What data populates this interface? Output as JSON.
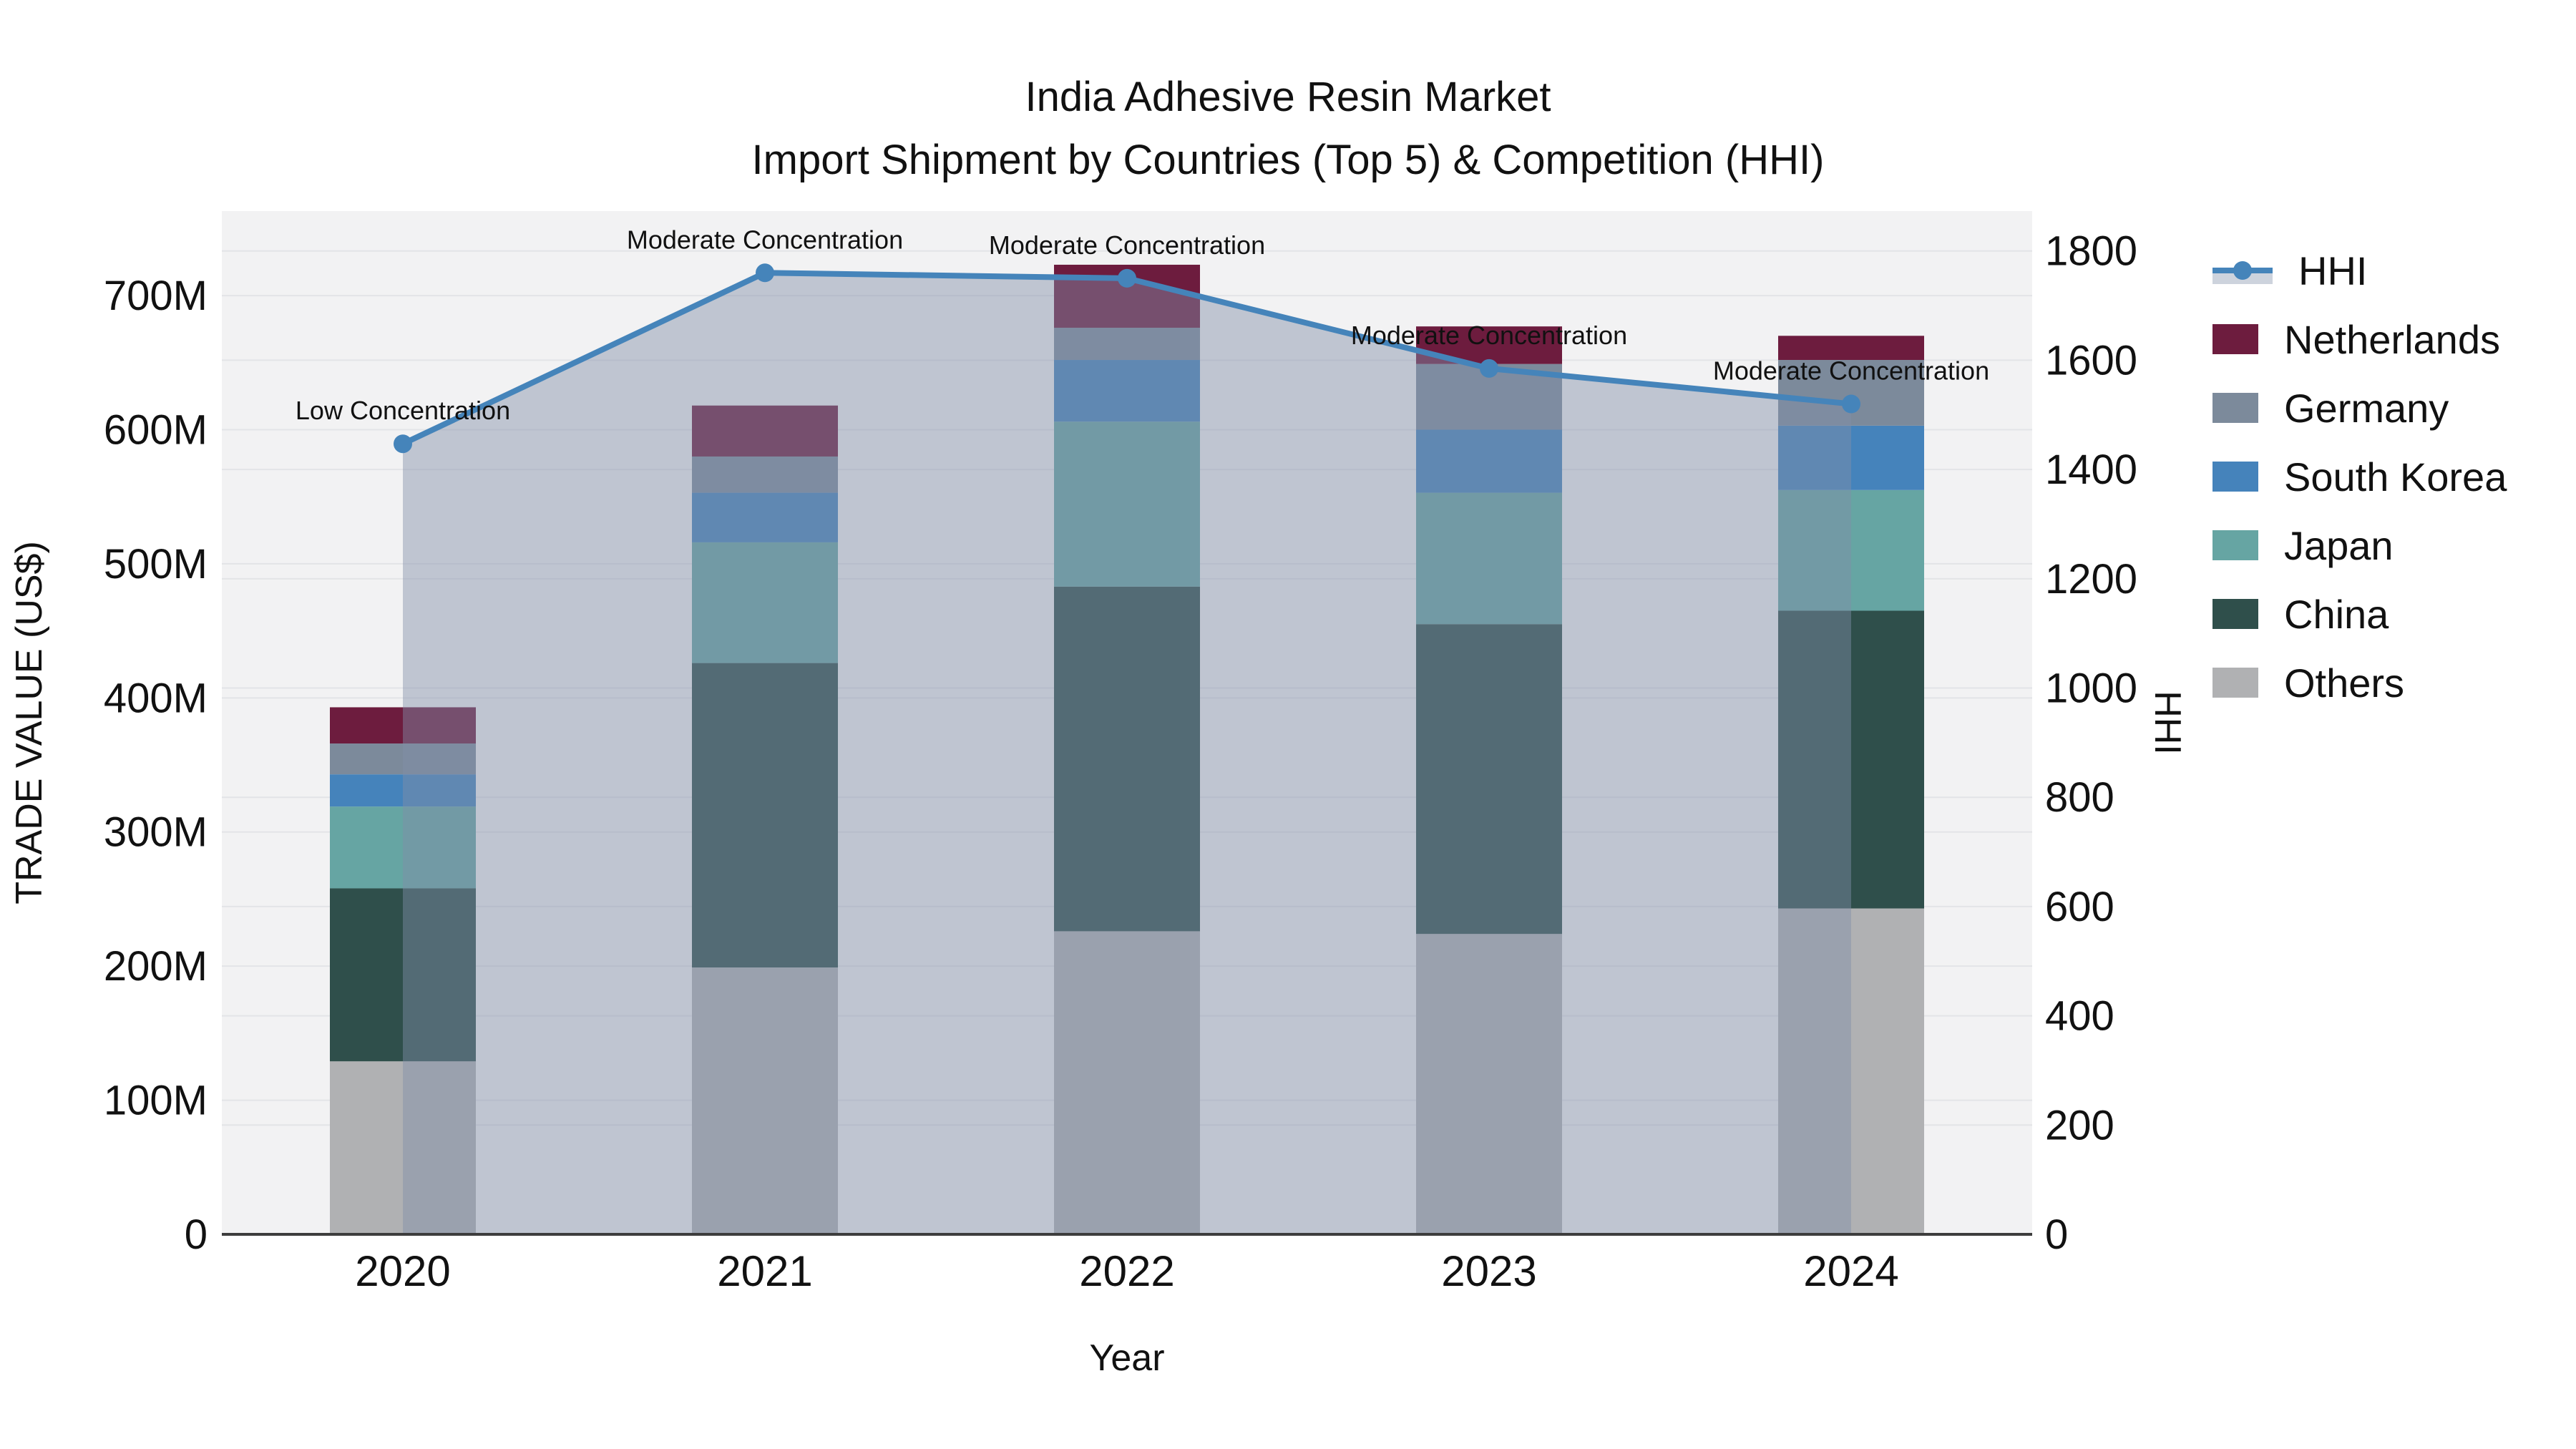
{
  "title": {
    "line1": "India Adhesive Resin Market",
    "line2": "Import Shipment by Countries (Top 5) & Competition (HHI)"
  },
  "chart_data": {
    "type": "bar",
    "subtype": "stacked-bars-with-line",
    "categories": [
      "2020",
      "2021",
      "2022",
      "2023",
      "2024"
    ],
    "stacked_series": [
      {
        "name": "Others",
        "color": "#b0b1b3",
        "values": [
          129,
          199,
          226,
          224,
          243
        ]
      },
      {
        "name": "China",
        "color": "#2f4f4b",
        "values": [
          129,
          227,
          257,
          231,
          222
        ]
      },
      {
        "name": "Japan",
        "color": "#66a5a3",
        "values": [
          61,
          90,
          123,
          98,
          90
        ]
      },
      {
        "name": "South Korea",
        "color": "#4583bb",
        "values": [
          24,
          37,
          46,
          47,
          48
        ]
      },
      {
        "name": "Germany",
        "color": "#7c8a9b",
        "values": [
          23,
          27,
          24,
          49,
          49
        ]
      },
      {
        "name": "Netherlands",
        "color": "#6d1c3e",
        "values": [
          27,
          38,
          47,
          28,
          18
        ]
      }
    ],
    "bar_totals": [
      393,
      618,
      723,
      677,
      670
    ],
    "line_series": {
      "name": "HHI",
      "color": "#4584ba",
      "area_fill": "rgba(128,142,168,0.45)",
      "values": [
        1447,
        1760,
        1750,
        1585,
        1520
      ]
    },
    "annotations": [
      "Low Concentration",
      "Moderate Concentration",
      "Moderate Concentration",
      "Moderate Concentration",
      "Moderate Concentration"
    ],
    "xlabel": "Year",
    "ylabel_left": "TRADE VALUE (US$)",
    "ylabel_right": "HHI",
    "yticks_left_labels": [
      "0",
      "100M",
      "200M",
      "300M",
      "400M",
      "500M",
      "600M",
      "700M"
    ],
    "yticks_left_values": [
      0,
      100,
      200,
      300,
      400,
      500,
      600,
      700
    ],
    "ylim_left": [
      0,
      763
    ],
    "yticks_right_values": [
      0,
      200,
      400,
      600,
      800,
      1000,
      1200,
      1400,
      1600,
      1800
    ],
    "ylim_right": [
      0,
      1873
    ],
    "grid": true,
    "legend_position": "right",
    "plot_bg": "#f2f2f3",
    "grid_color": "#e3e4e7",
    "axisline_color": "#3d3d3d",
    "text_color": "#111111",
    "units_note": "trade values in millions US$"
  },
  "legend_title_line": "HHI"
}
